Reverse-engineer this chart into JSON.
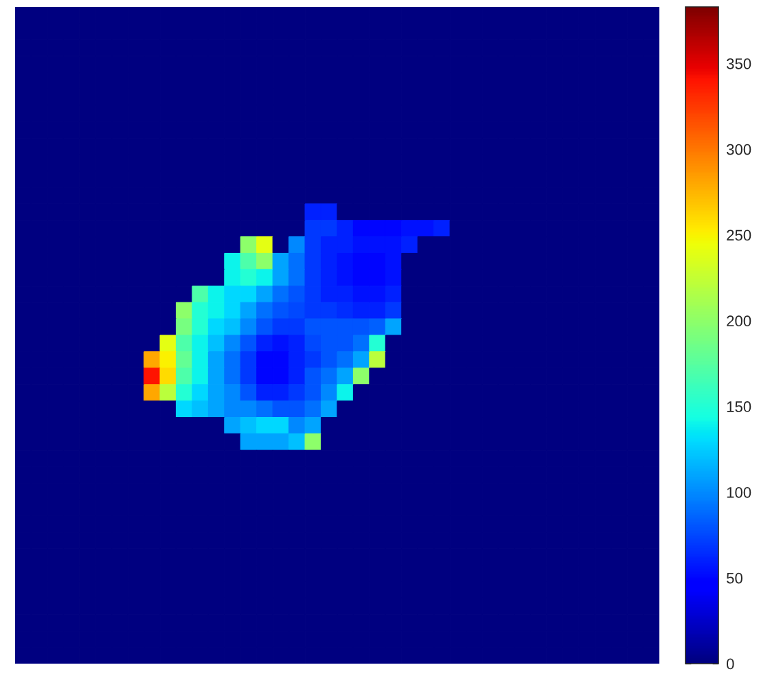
{
  "chart_data": {
    "type": "heatmap",
    "categories": [
      null,
      null,
      null,
      null,
      null,
      null,
      null,
      null,
      null,
      null,
      null,
      null,
      null,
      null,
      null,
      null,
      null,
      null,
      null,
      null,
      null,
      null,
      null,
      null,
      null,
      null,
      null,
      null,
      null,
      null,
      null,
      null,
      null,
      null,
      null,
      null,
      null,
      null,
      null,
      null
    ],
    "y_categories": [
      null,
      null,
      null,
      null,
      null,
      null,
      null,
      null,
      null,
      null,
      null,
      null,
      null,
      null,
      null,
      null,
      null,
      null,
      null,
      null,
      null,
      null,
      null,
      null,
      null,
      null,
      null,
      null,
      null,
      null,
      null,
      null,
      null,
      null,
      null,
      null,
      null,
      null,
      null,
      null
    ],
    "cells": [
      [
        0,
        0,
        0,
        0,
        0,
        0,
        0,
        0,
        0,
        0,
        0,
        0,
        0,
        0,
        0,
        0,
        0,
        0,
        0,
        0,
        0,
        0,
        0,
        0,
        0,
        0,
        0,
        0,
        0,
        0,
        0,
        0,
        0,
        0,
        0,
        0,
        0,
        0,
        0,
        0
      ],
      [
        0,
        0,
        0,
        0,
        0,
        0,
        0,
        0,
        0,
        0,
        0,
        0,
        0,
        0,
        0,
        0,
        0,
        0,
        0,
        0,
        0,
        0,
        0,
        0,
        0,
        0,
        0,
        0,
        0,
        0,
        0,
        0,
        0,
        0,
        0,
        0,
        0,
        0,
        0,
        0
      ],
      [
        0,
        0,
        0,
        0,
        0,
        0,
        0,
        0,
        0,
        0,
        0,
        0,
        0,
        0,
        0,
        0,
        0,
        0,
        0,
        0,
        0,
        0,
        0,
        0,
        0,
        0,
        0,
        0,
        0,
        0,
        0,
        0,
        0,
        0,
        0,
        0,
        0,
        0,
        0,
        0
      ],
      [
        0,
        0,
        0,
        0,
        0,
        0,
        0,
        0,
        0,
        0,
        0,
        0,
        0,
        0,
        0,
        0,
        0,
        0,
        0,
        0,
        0,
        0,
        0,
        0,
        0,
        0,
        0,
        0,
        0,
        0,
        0,
        0,
        0,
        0,
        0,
        0,
        0,
        0,
        0,
        0
      ],
      [
        0,
        0,
        0,
        0,
        0,
        0,
        0,
        0,
        0,
        0,
        0,
        0,
        0,
        0,
        0,
        0,
        0,
        0,
        0,
        0,
        0,
        0,
        0,
        0,
        0,
        0,
        0,
        0,
        0,
        0,
        0,
        0,
        0,
        0,
        0,
        0,
        0,
        0,
        0,
        0
      ],
      [
        0,
        0,
        0,
        0,
        0,
        0,
        0,
        0,
        0,
        0,
        0,
        0,
        0,
        0,
        0,
        0,
        0,
        0,
        0,
        0,
        0,
        0,
        0,
        0,
        0,
        0,
        0,
        0,
        0,
        0,
        0,
        0,
        0,
        0,
        0,
        0,
        0,
        0,
        0,
        0
      ],
      [
        0,
        0,
        0,
        0,
        0,
        0,
        0,
        0,
        0,
        0,
        0,
        0,
        0,
        0,
        0,
        0,
        0,
        0,
        0,
        0,
        0,
        0,
        0,
        0,
        0,
        0,
        0,
        0,
        0,
        0,
        0,
        0,
        0,
        0,
        0,
        0,
        0,
        0,
        0,
        0
      ],
      [
        0,
        0,
        0,
        0,
        0,
        0,
        0,
        0,
        0,
        0,
        0,
        0,
        0,
        0,
        0,
        0,
        0,
        0,
        0,
        0,
        0,
        0,
        0,
        0,
        0,
        0,
        0,
        0,
        0,
        0,
        0,
        0,
        0,
        0,
        0,
        0,
        0,
        0,
        0,
        0
      ],
      [
        0,
        0,
        0,
        0,
        0,
        0,
        0,
        0,
        0,
        0,
        0,
        0,
        0,
        0,
        0,
        0,
        0,
        0,
        0,
        0,
        0,
        0,
        0,
        0,
        0,
        0,
        0,
        0,
        0,
        0,
        0,
        0,
        0,
        0,
        0,
        0,
        0,
        0,
        0,
        0
      ],
      [
        0,
        0,
        0,
        0,
        0,
        0,
        0,
        0,
        0,
        0,
        0,
        0,
        0,
        0,
        0,
        0,
        0,
        0,
        0,
        0,
        0,
        0,
        0,
        0,
        0,
        0,
        0,
        0,
        0,
        0,
        0,
        0,
        0,
        0,
        0,
        0,
        0,
        0,
        0,
        0
      ],
      [
        0,
        0,
        0,
        0,
        0,
        0,
        0,
        0,
        0,
        0,
        0,
        0,
        0,
        0,
        0,
        0,
        0,
        0,
        0,
        0,
        0,
        0,
        0,
        0,
        0,
        0,
        0,
        0,
        0,
        0,
        0,
        0,
        0,
        0,
        0,
        0,
        0,
        0,
        0,
        0
      ],
      [
        0,
        0,
        0,
        0,
        0,
        0,
        0,
        0,
        0,
        0,
        0,
        0,
        0,
        0,
        0,
        0,
        0,
        0,
        0,
        0,
        0,
        0,
        0,
        0,
        0,
        0,
        0,
        0,
        0,
        0,
        0,
        0,
        0,
        0,
        0,
        0,
        0,
        0,
        0,
        0
      ],
      [
        0,
        0,
        0,
        0,
        0,
        0,
        0,
        0,
        0,
        0,
        0,
        0,
        0,
        0,
        0,
        0,
        0,
        0,
        60,
        60,
        0,
        0,
        0,
        0,
        0,
        0,
        0,
        0,
        0,
        0,
        0,
        0,
        0,
        0,
        0,
        0,
        0,
        0,
        0,
        0
      ],
      [
        0,
        0,
        0,
        0,
        0,
        0,
        0,
        0,
        0,
        0,
        0,
        0,
        0,
        0,
        0,
        0,
        0,
        0,
        70,
        70,
        60,
        50,
        50,
        50,
        55,
        55,
        60,
        0,
        0,
        0,
        0,
        0,
        0,
        0,
        0,
        0,
        0,
        0,
        0,
        0
      ],
      [
        0,
        0,
        0,
        0,
        0,
        0,
        0,
        0,
        0,
        0,
        0,
        0,
        0,
        0,
        200,
        240,
        0,
        100,
        70,
        60,
        60,
        55,
        55,
        55,
        60,
        0,
        0,
        0,
        0,
        0,
        0,
        0,
        0,
        0,
        0,
        0,
        0,
        0,
        0,
        0
      ],
      [
        0,
        0,
        0,
        0,
        0,
        0,
        0,
        0,
        0,
        0,
        0,
        0,
        0,
        140,
        170,
        200,
        110,
        90,
        70,
        60,
        55,
        50,
        50,
        55,
        0,
        0,
        0,
        0,
        0,
        0,
        0,
        0,
        0,
        0,
        0,
        0,
        0,
        0,
        0,
        0
      ],
      [
        0,
        0,
        0,
        0,
        0,
        0,
        0,
        0,
        0,
        0,
        0,
        0,
        0,
        140,
        150,
        140,
        110,
        90,
        70,
        60,
        55,
        50,
        50,
        55,
        0,
        0,
        0,
        0,
        0,
        0,
        0,
        0,
        0,
        0,
        0,
        0,
        0,
        0,
        0,
        0
      ],
      [
        0,
        0,
        0,
        0,
        0,
        0,
        0,
        0,
        0,
        0,
        0,
        170,
        140,
        130,
        130,
        110,
        90,
        80,
        70,
        60,
        60,
        55,
        55,
        60,
        0,
        0,
        0,
        0,
        0,
        0,
        0,
        0,
        0,
        0,
        0,
        0,
        0,
        0,
        0,
        0
      ],
      [
        0,
        0,
        0,
        0,
        0,
        0,
        0,
        0,
        0,
        0,
        200,
        150,
        140,
        130,
        110,
        90,
        80,
        75,
        70,
        70,
        65,
        60,
        60,
        70,
        0,
        0,
        0,
        0,
        0,
        0,
        0,
        0,
        0,
        0,
        0,
        0,
        0,
        0,
        0,
        0
      ],
      [
        0,
        0,
        0,
        0,
        0,
        0,
        0,
        0,
        0,
        0,
        190,
        150,
        130,
        120,
        100,
        80,
        70,
        70,
        80,
        80,
        80,
        80,
        85,
        110,
        0,
        0,
        0,
        0,
        0,
        0,
        0,
        0,
        0,
        0,
        0,
        0,
        0,
        0,
        0,
        0
      ],
      [
        0,
        0,
        0,
        0,
        0,
        0,
        0,
        0,
        0,
        240,
        170,
        140,
        120,
        100,
        80,
        60,
        55,
        60,
        75,
        80,
        80,
        90,
        150,
        0,
        0,
        0,
        0,
        0,
        0,
        0,
        0,
        0,
        0,
        0,
        0,
        0,
        0,
        0,
        0,
        0
      ],
      [
        0,
        0,
        0,
        0,
        0,
        0,
        0,
        0,
        280,
        250,
        180,
        140,
        110,
        90,
        70,
        50,
        50,
        60,
        70,
        80,
        90,
        110,
        220,
        0,
        0,
        0,
        0,
        0,
        0,
        0,
        0,
        0,
        0,
        0,
        0,
        0,
        0,
        0,
        0,
        0
      ],
      [
        0,
        0,
        0,
        0,
        0,
        0,
        0,
        0,
        340,
        260,
        170,
        140,
        110,
        90,
        70,
        50,
        50,
        60,
        80,
        90,
        110,
        200,
        0,
        0,
        0,
        0,
        0,
        0,
        0,
        0,
        0,
        0,
        0,
        0,
        0,
        0,
        0,
        0,
        0,
        0
      ],
      [
        0,
        0,
        0,
        0,
        0,
        0,
        0,
        0,
        280,
        220,
        150,
        130,
        110,
        100,
        80,
        60,
        60,
        70,
        80,
        100,
        140,
        0,
        0,
        0,
        0,
        0,
        0,
        0,
        0,
        0,
        0,
        0,
        0,
        0,
        0,
        0,
        0,
        0,
        0,
        0
      ],
      [
        0,
        0,
        0,
        0,
        0,
        0,
        0,
        0,
        0,
        0,
        130,
        120,
        110,
        100,
        100,
        90,
        80,
        80,
        90,
        110,
        0,
        0,
        0,
        0,
        0,
        0,
        0,
        0,
        0,
        0,
        0,
        0,
        0,
        0,
        0,
        0,
        0,
        0,
        0,
        0
      ],
      [
        0,
        0,
        0,
        0,
        0,
        0,
        0,
        0,
        0,
        0,
        0,
        0,
        0,
        110,
        120,
        130,
        130,
        100,
        110,
        0,
        0,
        0,
        0,
        0,
        0,
        0,
        0,
        0,
        0,
        0,
        0,
        0,
        0,
        0,
        0,
        0,
        0,
        0,
        0,
        0
      ],
      [
        0,
        0,
        0,
        0,
        0,
        0,
        0,
        0,
        0,
        0,
        0,
        0,
        0,
        0,
        110,
        110,
        110,
        120,
        200,
        0,
        0,
        0,
        0,
        0,
        0,
        0,
        0,
        0,
        0,
        0,
        0,
        0,
        0,
        0,
        0,
        0,
        0,
        0,
        0,
        0
      ],
      [
        0,
        0,
        0,
        0,
        0,
        0,
        0,
        0,
        0,
        0,
        0,
        0,
        0,
        0,
        0,
        0,
        0,
        0,
        0,
        0,
        0,
        0,
        0,
        0,
        0,
        0,
        0,
        0,
        0,
        0,
        0,
        0,
        0,
        0,
        0,
        0,
        0,
        0,
        0,
        0
      ],
      [
        0,
        0,
        0,
        0,
        0,
        0,
        0,
        0,
        0,
        0,
        0,
        0,
        0,
        0,
        0,
        0,
        0,
        0,
        0,
        0,
        0,
        0,
        0,
        0,
        0,
        0,
        0,
        0,
        0,
        0,
        0,
        0,
        0,
        0,
        0,
        0,
        0,
        0,
        0,
        0
      ],
      [
        0,
        0,
        0,
        0,
        0,
        0,
        0,
        0,
        0,
        0,
        0,
        0,
        0,
        0,
        0,
        0,
        0,
        0,
        0,
        0,
        0,
        0,
        0,
        0,
        0,
        0,
        0,
        0,
        0,
        0,
        0,
        0,
        0,
        0,
        0,
        0,
        0,
        0,
        0,
        0
      ],
      [
        0,
        0,
        0,
        0,
        0,
        0,
        0,
        0,
        0,
        0,
        0,
        0,
        0,
        0,
        0,
        0,
        0,
        0,
        0,
        0,
        0,
        0,
        0,
        0,
        0,
        0,
        0,
        0,
        0,
        0,
        0,
        0,
        0,
        0,
        0,
        0,
        0,
        0,
        0,
        0
      ],
      [
        0,
        0,
        0,
        0,
        0,
        0,
        0,
        0,
        0,
        0,
        0,
        0,
        0,
        0,
        0,
        0,
        0,
        0,
        0,
        0,
        0,
        0,
        0,
        0,
        0,
        0,
        0,
        0,
        0,
        0,
        0,
        0,
        0,
        0,
        0,
        0,
        0,
        0,
        0,
        0
      ],
      [
        0,
        0,
        0,
        0,
        0,
        0,
        0,
        0,
        0,
        0,
        0,
        0,
        0,
        0,
        0,
        0,
        0,
        0,
        0,
        0,
        0,
        0,
        0,
        0,
        0,
        0,
        0,
        0,
        0,
        0,
        0,
        0,
        0,
        0,
        0,
        0,
        0,
        0,
        0,
        0
      ],
      [
        0,
        0,
        0,
        0,
        0,
        0,
        0,
        0,
        0,
        0,
        0,
        0,
        0,
        0,
        0,
        0,
        0,
        0,
        0,
        0,
        0,
        0,
        0,
        0,
        0,
        0,
        0,
        0,
        0,
        0,
        0,
        0,
        0,
        0,
        0,
        0,
        0,
        0,
        0,
        0
      ],
      [
        0,
        0,
        0,
        0,
        0,
        0,
        0,
        0,
        0,
        0,
        0,
        0,
        0,
        0,
        0,
        0,
        0,
        0,
        0,
        0,
        0,
        0,
        0,
        0,
        0,
        0,
        0,
        0,
        0,
        0,
        0,
        0,
        0,
        0,
        0,
        0,
        0,
        0,
        0,
        0
      ],
      [
        0,
        0,
        0,
        0,
        0,
        0,
        0,
        0,
        0,
        0,
        0,
        0,
        0,
        0,
        0,
        0,
        0,
        0,
        0,
        0,
        0,
        0,
        0,
        0,
        0,
        0,
        0,
        0,
        0,
        0,
        0,
        0,
        0,
        0,
        0,
        0,
        0,
        0,
        0,
        0
      ],
      [
        0,
        0,
        0,
        0,
        0,
        0,
        0,
        0,
        0,
        0,
        0,
        0,
        0,
        0,
        0,
        0,
        0,
        0,
        0,
        0,
        0,
        0,
        0,
        0,
        0,
        0,
        0,
        0,
        0,
        0,
        0,
        0,
        0,
        0,
        0,
        0,
        0,
        0,
        0,
        0
      ],
      [
        0,
        0,
        0,
        0,
        0,
        0,
        0,
        0,
        0,
        0,
        0,
        0,
        0,
        0,
        0,
        0,
        0,
        0,
        0,
        0,
        0,
        0,
        0,
        0,
        0,
        0,
        0,
        0,
        0,
        0,
        0,
        0,
        0,
        0,
        0,
        0,
        0,
        0,
        0,
        0
      ],
      [
        0,
        0,
        0,
        0,
        0,
        0,
        0,
        0,
        0,
        0,
        0,
        0,
        0,
        0,
        0,
        0,
        0,
        0,
        0,
        0,
        0,
        0,
        0,
        0,
        0,
        0,
        0,
        0,
        0,
        0,
        0,
        0,
        0,
        0,
        0,
        0,
        0,
        0,
        0,
        0
      ],
      [
        0,
        0,
        0,
        0,
        0,
        0,
        0,
        0,
        0,
        0,
        0,
        0,
        0,
        0,
        0,
        0,
        0,
        0,
        0,
        0,
        0,
        0,
        0,
        0,
        0,
        0,
        0,
        0,
        0,
        0,
        0,
        0,
        0,
        0,
        0,
        0,
        0,
        0,
        0,
        0
      ]
    ],
    "clim": [
      0,
      383
    ],
    "cticks": [
      0,
      50,
      100,
      150,
      200,
      250,
      300,
      350
    ]
  }
}
